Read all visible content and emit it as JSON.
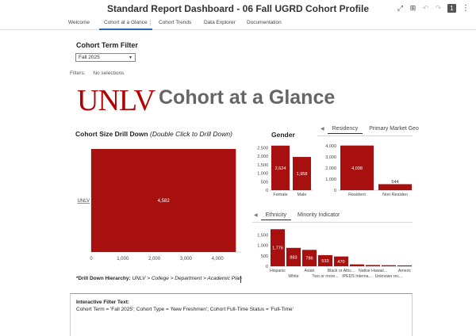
{
  "window": {
    "title": "Standard Report Dashboard - 06 Fall UGRD Cohort Profile",
    "page_badge": "1"
  },
  "toolbar": {
    "icons": [
      "expand-icon",
      "present-icon",
      "undo-icon",
      "redo-icon",
      "page-badge",
      "more-icon"
    ]
  },
  "tabs": [
    {
      "label": "Welcome",
      "active": false
    },
    {
      "label": "Cohort at a Glance",
      "active": true
    },
    {
      "label": "Cohort Trends",
      "active": false
    },
    {
      "label": "Data Explorer",
      "active": false
    },
    {
      "label": "Documentation",
      "active": false
    }
  ],
  "filter": {
    "label": "Cohort Term Filter",
    "selected": "Fall 2025",
    "filters_label": "Filters:",
    "filters_value": "No selections"
  },
  "brand": {
    "logo_text": "UNLV",
    "heading": "Cohort at a Glance"
  },
  "drilldown": {
    "title_bold": "Cohort Size Drill Down",
    "title_italic": "(Double Click to Drill Down)",
    "hierarchy_label": "*Drill Down Hierarchy:",
    "hierarchy_value": "UNLV > College > Department > Academic Plan"
  },
  "gender": {
    "title": "Gender"
  },
  "residency_tabs": {
    "items": [
      "Residency",
      "Primary Market Geo"
    ],
    "active": 0
  },
  "ethnicity_tabs": {
    "items": [
      "Ethnicity",
      "Minority Indicator"
    ],
    "active": 0
  },
  "interactive_filter": {
    "title": "Interactive Filter Text:",
    "body": "Cohort Term = 'Fall 2025'; Cohort Type = 'New Freshmen'; Cohort Full-Time Status = 'Full-Time'"
  },
  "colors": {
    "bar": "#a81010",
    "accent_tab": "#2a6ebb",
    "logo": "#b10202"
  },
  "chart_data": [
    {
      "name": "cohort-size",
      "type": "bar",
      "orientation": "horizontal",
      "categories": [
        "UNLV"
      ],
      "values": [
        4582
      ],
      "value_labels": [
        "4,582"
      ],
      "xticks": [
        "0",
        "1,000",
        "2,000",
        "3,000",
        "4,000"
      ],
      "xlim": [
        0,
        4750
      ]
    },
    {
      "name": "gender",
      "type": "bar",
      "categories": [
        "Female",
        "Male"
      ],
      "values": [
        2624,
        1958
      ],
      "value_labels": [
        "2,624",
        "1,958"
      ],
      "yticks": [
        "0",
        "500",
        "1,000",
        "1,500",
        "2,000",
        "2,500"
      ],
      "ylim": [
        0,
        2800
      ]
    },
    {
      "name": "residency",
      "type": "bar",
      "categories": [
        "Resident",
        "Non Resident"
      ],
      "category_labels": [
        "Resident",
        "Non Residen"
      ],
      "values": [
        4038,
        544
      ],
      "value_labels": [
        "4,038",
        "544"
      ],
      "yticks": [
        "0",
        "1,000",
        "2,000",
        "3,000",
        "4,000"
      ],
      "ylim": [
        0,
        4300
      ]
    },
    {
      "name": "ethnicity",
      "type": "bar",
      "categories": [
        "Hispanic",
        "White",
        "Asian",
        "Two or more...",
        "Black or Afric...",
        "IPEDS Interna...",
        "Native Hawaii...",
        "Unknown rec...",
        "Americ"
      ],
      "values": [
        1776,
        883,
        786,
        533,
        470,
        90,
        60,
        50,
        40
      ],
      "value_labels": [
        "1,776",
        "883",
        "786",
        "533",
        "470",
        "",
        "",
        "",
        ""
      ],
      "yticks": [
        "0",
        "500",
        "1,000",
        "1,500"
      ],
      "ylim": [
        0,
        1900
      ]
    }
  ]
}
